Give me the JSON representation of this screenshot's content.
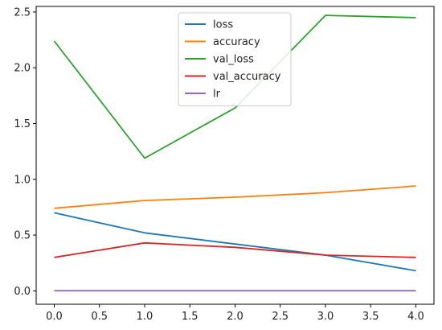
{
  "chart_data": {
    "type": "line",
    "title": "",
    "xlabel": "",
    "ylabel": "",
    "x": [
      0,
      1,
      2,
      3,
      4
    ],
    "xlim": [
      -0.2,
      4.2
    ],
    "ylim": [
      -0.12,
      2.55
    ],
    "xticks": [
      0.0,
      0.5,
      1.0,
      1.5,
      2.0,
      2.5,
      3.0,
      3.5,
      4.0
    ],
    "xtick_labels": [
      "0.0",
      "0.5",
      "1.0",
      "1.5",
      "2.0",
      "2.5",
      "3.0",
      "3.5",
      "4.0"
    ],
    "yticks": [
      0.0,
      0.5,
      1.0,
      1.5,
      2.0,
      2.5
    ],
    "ytick_labels": [
      "0.0",
      "0.5",
      "1.0",
      "1.5",
      "2.0",
      "2.5"
    ],
    "grid": false,
    "legend_position": "top-center",
    "series": [
      {
        "name": "loss",
        "color": "#1f77b4",
        "values": [
          0.7,
          0.52,
          0.42,
          0.32,
          0.18
        ]
      },
      {
        "name": "accuracy",
        "color": "#ff7f0e",
        "values": [
          0.74,
          0.81,
          0.84,
          0.88,
          0.94
        ]
      },
      {
        "name": "val_loss",
        "color": "#2ca02c",
        "values": [
          2.24,
          1.19,
          1.64,
          2.47,
          2.45
        ]
      },
      {
        "name": "val_accuracy",
        "color": "#d62728",
        "values": [
          0.3,
          0.43,
          0.39,
          0.32,
          0.3
        ]
      },
      {
        "name": "lr",
        "color": "#9467bd",
        "values": [
          0.001,
          0.001,
          0.001,
          0.001,
          0.001
        ]
      }
    ]
  }
}
